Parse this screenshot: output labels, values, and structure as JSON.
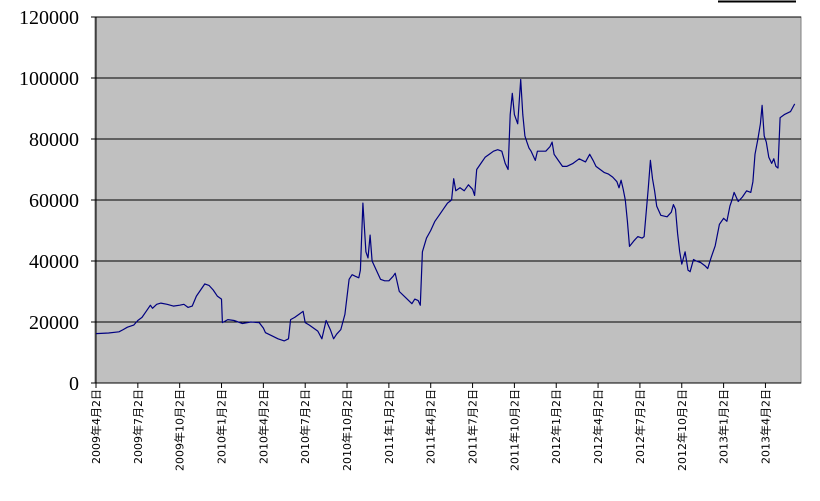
{
  "chart_data": {
    "type": "line",
    "title": "",
    "xlabel": "",
    "ylabel": "",
    "ylim": [
      0,
      120000
    ],
    "yticks": [
      0,
      20000,
      40000,
      60000,
      80000,
      100000,
      120000
    ],
    "ytick_labels": [
      "0",
      "20000",
      "40000",
      "60000",
      "80000",
      "100000",
      "120000"
    ],
    "x_categories": [
      "2009年4月2日",
      "2009年7月2日",
      "2009年10月2日",
      "2010年1月2日",
      "2010年4月2日",
      "2010年7月2日",
      "2010年10月2日",
      "2011年1月2日",
      "2011年4月2日",
      "2011年7月2日",
      "2011年10月2日",
      "2012年1月2日",
      "2012年4月2日",
      "2012年7月2日",
      "2012年10月2日",
      "2013年1月2日",
      "2013年4月2日"
    ],
    "grid": "horizontal",
    "plot_background": "#c0c0c0",
    "line_color": "#000080",
    "x_range_end_quarters": 16.85,
    "series": [
      {
        "points": [
          [
            0,
            16200
          ],
          [
            0.3,
            16400
          ],
          [
            0.55,
            16800
          ],
          [
            0.65,
            17500
          ],
          [
            0.75,
            18300
          ],
          [
            0.9,
            19000
          ],
          [
            1.0,
            20500
          ],
          [
            1.1,
            21500
          ],
          [
            1.2,
            23500
          ],
          [
            1.3,
            25500
          ],
          [
            1.35,
            24500
          ],
          [
            1.45,
            25800
          ],
          [
            1.55,
            26200
          ],
          [
            1.7,
            25800
          ],
          [
            1.85,
            25200
          ],
          [
            2.0,
            25500
          ],
          [
            2.1,
            25800
          ],
          [
            2.2,
            24800
          ],
          [
            2.3,
            25200
          ],
          [
            2.4,
            28500
          ],
          [
            2.5,
            30500
          ],
          [
            2.6,
            32500
          ],
          [
            2.7,
            32000
          ],
          [
            2.8,
            30500
          ],
          [
            2.9,
            28500
          ],
          [
            3.0,
            27500
          ],
          [
            3.02,
            19800
          ],
          [
            3.15,
            20800
          ],
          [
            3.3,
            20500
          ],
          [
            3.5,
            19500
          ],
          [
            3.7,
            20000
          ],
          [
            3.9,
            19800
          ],
          [
            4.0,
            18000
          ],
          [
            4.05,
            16500
          ],
          [
            4.2,
            15500
          ],
          [
            4.35,
            14500
          ],
          [
            4.5,
            13800
          ],
          [
            4.6,
            14500
          ],
          [
            4.65,
            20800
          ],
          [
            4.75,
            21500
          ],
          [
            4.85,
            22500
          ],
          [
            4.95,
            23500
          ],
          [
            5.0,
            19800
          ],
          [
            5.1,
            19000
          ],
          [
            5.2,
            18000
          ],
          [
            5.3,
            17000
          ],
          [
            5.4,
            14500
          ],
          [
            5.5,
            20500
          ],
          [
            5.6,
            17500
          ],
          [
            5.68,
            14500
          ],
          [
            5.75,
            16000
          ],
          [
            5.85,
            17500
          ],
          [
            5.95,
            22500
          ],
          [
            6.05,
            34000
          ],
          [
            6.12,
            35500
          ],
          [
            6.2,
            35000
          ],
          [
            6.28,
            34500
          ],
          [
            6.32,
            37000
          ],
          [
            6.38,
            59000
          ],
          [
            6.45,
            43000
          ],
          [
            6.5,
            41000
          ],
          [
            6.55,
            48500
          ],
          [
            6.6,
            40000
          ],
          [
            6.7,
            37000
          ],
          [
            6.8,
            34000
          ],
          [
            6.9,
            33500
          ],
          [
            7.0,
            33500
          ],
          [
            7.1,
            35000
          ],
          [
            7.15,
            36000
          ],
          [
            7.25,
            30000
          ],
          [
            7.4,
            28000
          ],
          [
            7.55,
            26000
          ],
          [
            7.62,
            27500
          ],
          [
            7.7,
            27000
          ],
          [
            7.75,
            25500
          ],
          [
            7.8,
            43000
          ],
          [
            7.9,
            47500
          ],
          [
            8.0,
            50000
          ],
          [
            8.1,
            53000
          ],
          [
            8.2,
            55000
          ],
          [
            8.3,
            57000
          ],
          [
            8.4,
            59000
          ],
          [
            8.5,
            60000
          ],
          [
            8.55,
            67000
          ],
          [
            8.6,
            63000
          ],
          [
            8.7,
            64000
          ],
          [
            8.8,
            63000
          ],
          [
            8.9,
            65000
          ],
          [
            9.0,
            63500
          ],
          [
            9.05,
            61500
          ],
          [
            9.1,
            70000
          ],
          [
            9.2,
            72000
          ],
          [
            9.3,
            74000
          ],
          [
            9.4,
            75000
          ],
          [
            9.5,
            76000
          ],
          [
            9.6,
            76500
          ],
          [
            9.7,
            76000
          ],
          [
            9.78,
            72000
          ],
          [
            9.85,
            70000
          ],
          [
            9.9,
            88000
          ],
          [
            9.95,
            95000
          ],
          [
            10.0,
            88000
          ],
          [
            10.08,
            85000
          ],
          [
            10.15,
            99500
          ],
          [
            10.2,
            88000
          ],
          [
            10.25,
            81000
          ],
          [
            10.3,
            79000
          ],
          [
            10.35,
            77000
          ],
          [
            10.4,
            76000
          ],
          [
            10.5,
            73000
          ],
          [
            10.55,
            76000
          ],
          [
            10.65,
            76000
          ],
          [
            10.75,
            76000
          ],
          [
            10.85,
            77500
          ],
          [
            10.9,
            79000
          ],
          [
            10.95,
            75000
          ],
          [
            11.05,
            73000
          ],
          [
            11.15,
            71000
          ],
          [
            11.25,
            71000
          ],
          [
            11.4,
            72000
          ],
          [
            11.55,
            73500
          ],
          [
            11.7,
            72500
          ],
          [
            11.8,
            75000
          ],
          [
            11.88,
            73000
          ],
          [
            11.95,
            71000
          ],
          [
            12.05,
            70000
          ],
          [
            12.15,
            69000
          ],
          [
            12.25,
            68500
          ],
          [
            12.35,
            67500
          ],
          [
            12.45,
            66000
          ],
          [
            12.5,
            64000
          ],
          [
            12.55,
            66500
          ],
          [
            12.6,
            63500
          ],
          [
            12.65,
            60000
          ],
          [
            12.7,
            53000
          ],
          [
            12.75,
            44800
          ],
          [
            12.85,
            46500
          ],
          [
            12.95,
            48000
          ],
          [
            13.05,
            47500
          ],
          [
            13.1,
            48000
          ],
          [
            13.2,
            64000
          ],
          [
            13.25,
            73000
          ],
          [
            13.3,
            67000
          ],
          [
            13.35,
            63000
          ],
          [
            13.4,
            58000
          ],
          [
            13.5,
            55000
          ],
          [
            13.65,
            54500
          ],
          [
            13.75,
            56000
          ],
          [
            13.8,
            58500
          ],
          [
            13.85,
            57000
          ],
          [
            13.9,
            49000
          ],
          [
            13.95,
            43000
          ],
          [
            14.0,
            39000
          ],
          [
            14.08,
            43000
          ],
          [
            14.15,
            37000
          ],
          [
            14.2,
            36500
          ],
          [
            14.28,
            40500
          ],
          [
            14.35,
            40000
          ],
          [
            14.45,
            39500
          ],
          [
            14.55,
            38500
          ],
          [
            14.62,
            37500
          ],
          [
            14.7,
            41000
          ],
          [
            14.8,
            45000
          ],
          [
            14.9,
            52000
          ],
          [
            15.0,
            54000
          ],
          [
            15.08,
            53000
          ],
          [
            15.15,
            58000
          ],
          [
            15.2,
            60000
          ],
          [
            15.25,
            62500
          ],
          [
            15.35,
            59500
          ],
          [
            15.45,
            61000
          ],
          [
            15.55,
            63000
          ],
          [
            15.65,
            62500
          ],
          [
            15.7,
            66000
          ],
          [
            15.75,
            75000
          ],
          [
            15.82,
            80000
          ],
          [
            15.88,
            85000
          ],
          [
            15.92,
            91000
          ],
          [
            15.97,
            81000
          ],
          [
            16.02,
            79000
          ],
          [
            16.08,
            74000
          ],
          [
            16.15,
            72000
          ],
          [
            16.2,
            73500
          ],
          [
            16.25,
            71000
          ],
          [
            16.3,
            70500
          ],
          [
            16.35,
            87000
          ],
          [
            16.45,
            88000
          ],
          [
            16.6,
            89000
          ],
          [
            16.7,
            91500
          ]
        ]
      }
    ],
    "legend": {
      "position": "top-right",
      "entries": [
        {
          "name": ""
        }
      ]
    }
  }
}
